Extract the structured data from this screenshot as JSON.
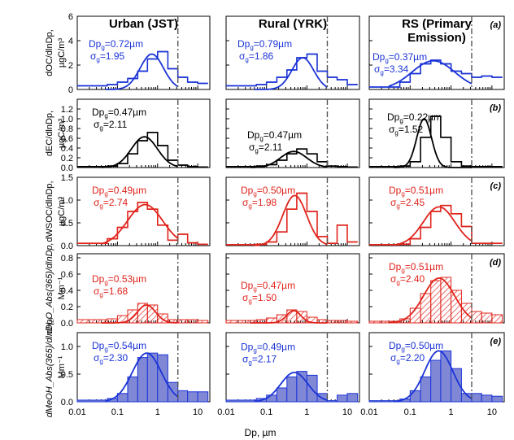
{
  "chart_data": {
    "type": "step-histogram-grid",
    "x_axis": {
      "label": "Dp, µm",
      "scale": "log",
      "range": [
        0.01,
        20
      ],
      "tick_labels": [
        "0.01",
        "0.1",
        "1",
        "10"
      ]
    },
    "columns": [
      {
        "title_lines": [
          "Urban (JST)"
        ]
      },
      {
        "title_lines": [
          "Rural (YRK)"
        ]
      },
      {
        "title_lines": [
          "RS (Primary",
          "Emission)"
        ]
      }
    ],
    "bin_edges": [
      0.01,
      0.056,
      0.1,
      0.18,
      0.32,
      0.56,
      1.0,
      1.8,
      3.2,
      5.6,
      10,
      18
    ],
    "vline_x": 3.2,
    "panels": [
      {
        "id": "a",
        "letter": "(a)",
        "ylabel_lines": [
          "dOC/dlnDp,",
          "µgC/m³"
        ],
        "ylim": [
          0,
          6
        ],
        "yticks": [
          "0",
          "2",
          "4",
          "6"
        ],
        "color": "#1a33d6",
        "style": "step",
        "series": [
          {
            "name": "Urban (JST)",
            "values": [
              0.3,
              0.4,
              0.6,
              0.9,
              1.5,
              2.5,
              3.1,
              1.7,
              1.0,
              0.6,
              0.5
            ],
            "fit": {
              "dpg": 0.72,
              "sigma": 1.95,
              "peak": 2.9,
              "xmin": 0.05,
              "xmax": 3.2
            },
            "annotation": {
              "dp_text": "0.72µm",
              "sigma_text": "1.95"
            }
          },
          {
            "name": "Rural (YRK)",
            "values": [
              0.3,
              0.4,
              0.6,
              1.0,
              1.6,
              2.6,
              2.9,
              1.5,
              1.0,
              0.8,
              0.4
            ],
            "fit": {
              "dpg": 0.79,
              "sigma": 1.86,
              "peak": 2.6,
              "xmin": 0.05,
              "xmax": 3.2
            },
            "annotation": {
              "dp_text": "0.79µm",
              "sigma_text": "1.86"
            }
          },
          {
            "name": "RS (Primary Emission)",
            "values": [
              0.2,
              0.6,
              1.3,
              2.1,
              2.4,
              2.1,
              1.5,
              1.3,
              1.0,
              1.1,
              1.0
            ],
            "fit": {
              "dpg": 0.37,
              "sigma": 3.34,
              "peak": 2.35,
              "xmin": 0.03,
              "xmax": 3.2
            },
            "annotation": {
              "dp_text": "0.37µm",
              "sigma_text": "3.34"
            }
          }
        ]
      },
      {
        "id": "b",
        "letter": "(b)",
        "ylabel_lines": [
          "dEC/dlnDp,",
          "µgC/m³"
        ],
        "ylim": [
          0,
          1.4
        ],
        "yticks": [
          "0.0",
          "0.2",
          "0.4",
          "0.6",
          "0.8",
          "1.0",
          "1.2"
        ],
        "color": "#000000",
        "style": "step",
        "series": [
          {
            "name": "Urban (JST)",
            "values": [
              0.02,
              0.03,
              0.08,
              0.28,
              0.55,
              0.72,
              0.45,
              0.15,
              0.05,
              0.02,
              0.01
            ],
            "fit": {
              "dpg": 0.47,
              "sigma": 2.11,
              "peak": 0.63,
              "xmin": 0.04,
              "xmax": 3.2
            },
            "annotation": {
              "dp_text": "0.47µm",
              "sigma_text": "2.11"
            }
          },
          {
            "name": "Rural (YRK)",
            "values": [
              0.02,
              0.03,
              0.06,
              0.15,
              0.28,
              0.38,
              0.28,
              0.12,
              0.03,
              0.02,
              0.01
            ],
            "fit": {
              "dpg": 0.47,
              "sigma": 2.11,
              "peak": 0.33,
              "xmin": 0.04,
              "xmax": 3.2
            },
            "annotation": {
              "dp_text": "0.47µm",
              "sigma_text": "2.11"
            }
          },
          {
            "name": "RS (Primary Emission)",
            "values": [
              0.02,
              0.03,
              0.12,
              0.62,
              1.05,
              0.62,
              0.12,
              0.03,
              0.02,
              0.02,
              0.02
            ],
            "fit": {
              "dpg": 0.22,
              "sigma": 1.52,
              "peak": 1.0,
              "xmin": 0.04,
              "xmax": 3.2
            },
            "annotation": {
              "dp_text": "0.22µm",
              "sigma_text": "1.52"
            }
          }
        ]
      },
      {
        "id": "c",
        "letter": "(c)",
        "ylabel_lines": [
          "dWSOC/dlnDp,",
          "µgC/m³"
        ],
        "ylim": [
          0,
          1.5
        ],
        "yticks": [
          "0.0",
          "0.5",
          "1.0",
          "1.5"
        ],
        "color": "#e0241c",
        "style": "step",
        "series": [
          {
            "name": "Urban (JST)",
            "values": [
              0.05,
              0.15,
              0.4,
              0.75,
              0.95,
              0.8,
              0.45,
              0.12,
              0.25,
              0.06,
              0.03
            ],
            "fit": {
              "dpg": 0.49,
              "sigma": 2.74,
              "peak": 0.9,
              "xmin": 0.04,
              "xmax": 3.2
            },
            "annotation": {
              "dp_text": "0.49µm",
              "sigma_text": "2.74"
            }
          },
          {
            "name": "Rural (YRK)",
            "values": [
              0.02,
              0.03,
              0.08,
              0.3,
              0.8,
              1.15,
              0.75,
              0.2,
              0.05,
              0.45,
              0.08
            ],
            "fit": {
              "dpg": 0.5,
              "sigma": 1.98,
              "peak": 1.1,
              "xmin": 0.05,
              "xmax": 3.2
            },
            "annotation": {
              "dp_text": "0.50µm",
              "sigma_text": "1.98"
            }
          },
          {
            "name": "RS (Primary Emission)",
            "values": [
              0.02,
              0.03,
              0.15,
              0.4,
              0.75,
              0.88,
              0.7,
              0.42,
              0.05,
              0.05,
              0.05
            ],
            "fit": {
              "dpg": 0.51,
              "sigma": 2.45,
              "peak": 0.85,
              "xmin": 0.04,
              "xmax": 3.2
            },
            "annotation": {
              "dp_text": "0.51µm",
              "sigma_text": "2.45"
            }
          }
        ]
      },
      {
        "id": "d",
        "letter": "(d)",
        "ylabel_lines": [
          "dH₂O_Abs(365)/dlnDp,",
          "Mm⁻¹"
        ],
        "ylim": [
          0,
          0.85
        ],
        "yticks": [
          "0.0",
          "0.2",
          "0.4",
          "0.6",
          "0.8"
        ],
        "color": "#e0241c",
        "style": "hatched",
        "series": [
          {
            "name": "Urban (JST)",
            "values": [
              0.04,
              0.05,
              0.09,
              0.16,
              0.24,
              0.22,
              0.11,
              0.04,
              0.04,
              0.04,
              0.03
            ],
            "fit": {
              "dpg": 0.53,
              "sigma": 1.68,
              "peak": 0.22,
              "xmin": 0.04,
              "xmax": 3.2
            },
            "annotation": {
              "dp_text": "0.53µm",
              "sigma_text": "1.68"
            }
          },
          {
            "name": "Rural (YRK)",
            "values": [
              0.03,
              0.04,
              0.06,
              0.1,
              0.16,
              0.14,
              0.07,
              0.04,
              0.03,
              0.03,
              0.02
            ],
            "fit": {
              "dpg": 0.47,
              "sigma": 1.5,
              "peak": 0.15,
              "xmin": 0.04,
              "xmax": 3.2
            },
            "annotation": {
              "dp_text": "0.47µm",
              "sigma_text": "1.50"
            }
          },
          {
            "name": "RS (Primary Emission)",
            "values": [
              0.02,
              0.05,
              0.18,
              0.36,
              0.52,
              0.56,
              0.4,
              0.24,
              0.14,
              0.12,
              0.1
            ],
            "fit": {
              "dpg": 0.51,
              "sigma": 2.4,
              "peak": 0.55,
              "xmin": 0.03,
              "xmax": 3.2
            },
            "annotation": {
              "dp_text": "0.51µm",
              "sigma_text": "2.40"
            }
          }
        ]
      },
      {
        "id": "e",
        "letter": "(e)",
        "ylabel_lines": [
          "dMeOH_Abs(365)/dlnDp,",
          "Mm⁻¹"
        ],
        "ylim": [
          0,
          1.25
        ],
        "yticks": [
          "0.0",
          "0.5",
          "1.0"
        ],
        "color": "#1a33d6",
        "style": "filled",
        "series": [
          {
            "name": "Urban (JST)",
            "values": [
              0.03,
              0.06,
              0.15,
              0.45,
              0.8,
              0.88,
              0.85,
              0.35,
              0.2,
              0.18,
              0.18
            ],
            "fit": {
              "dpg": 0.54,
              "sigma": 2.3,
              "peak": 0.88,
              "xmin": 0.05,
              "xmax": 3.2
            },
            "annotation": {
              "dp_text": "0.54µm",
              "sigma_text": "2.30"
            }
          },
          {
            "name": "Rural (YRK)",
            "values": [
              0.03,
              0.06,
              0.12,
              0.25,
              0.45,
              0.55,
              0.48,
              0.15,
              0.02,
              0.12,
              0.15
            ],
            "fit": {
              "dpg": 0.49,
              "sigma": 2.17,
              "peak": 0.53,
              "xmin": 0.05,
              "xmax": 3.2
            },
            "annotation": {
              "dp_text": "0.49µm",
              "sigma_text": "2.17"
            }
          },
          {
            "name": "RS (Primary Emission)",
            "values": [
              0.02,
              0.05,
              0.2,
              0.45,
              0.75,
              0.92,
              0.6,
              0.15,
              0.15,
              0.12,
              0.1
            ],
            "fit": {
              "dpg": 0.5,
              "sigma": 2.2,
              "peak": 0.92,
              "xmin": 0.04,
              "xmax": 3.2
            },
            "annotation": {
              "dp_text": "0.50µm",
              "sigma_text": "2.20"
            }
          }
        ]
      }
    ]
  }
}
